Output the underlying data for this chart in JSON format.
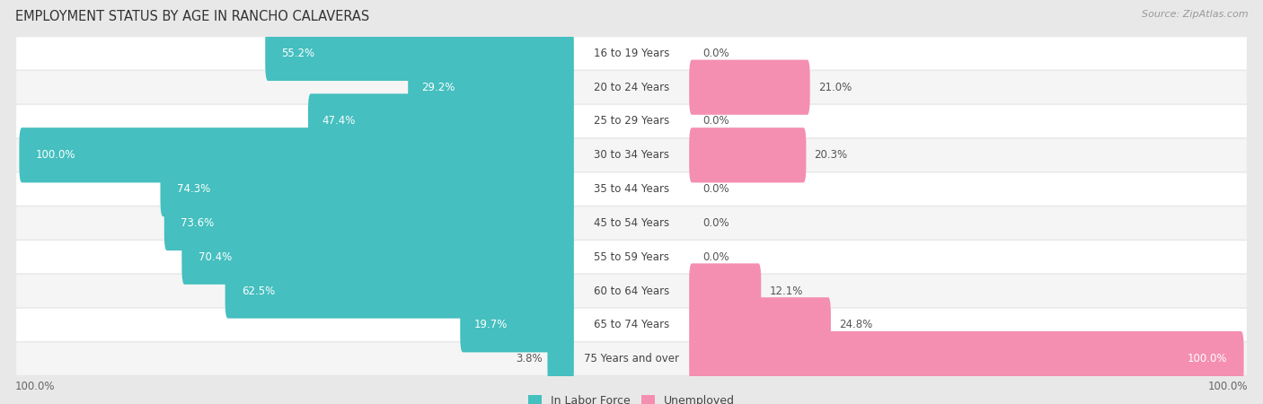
{
  "title": "EMPLOYMENT STATUS BY AGE IN RANCHO CALAVERAS",
  "source": "Source: ZipAtlas.com",
  "categories": [
    "16 to 19 Years",
    "20 to 24 Years",
    "25 to 29 Years",
    "30 to 34 Years",
    "35 to 44 Years",
    "45 to 54 Years",
    "55 to 59 Years",
    "60 to 64 Years",
    "65 to 74 Years",
    "75 Years and over"
  ],
  "labor_force": [
    55.2,
    29.2,
    47.4,
    100.0,
    74.3,
    73.6,
    70.4,
    62.5,
    19.7,
    3.8
  ],
  "unemployed": [
    0.0,
    21.0,
    0.0,
    20.3,
    0.0,
    0.0,
    0.0,
    12.1,
    24.8,
    100.0
  ],
  "labor_color": "#45BFBF",
  "unemployed_color": "#F48FB1",
  "bg_color": "#e8e8e8",
  "row_bg_light": "#f5f5f5",
  "row_bg_white": "#ffffff",
  "label_white": "#ffffff",
  "label_dark": "#555555",
  "title_fontsize": 10.5,
  "source_fontsize": 8,
  "label_fontsize": 8.5,
  "category_fontsize": 8.5,
  "legend_fontsize": 9,
  "left_axis_label": "100.0%",
  "right_axis_label": "100.0%"
}
